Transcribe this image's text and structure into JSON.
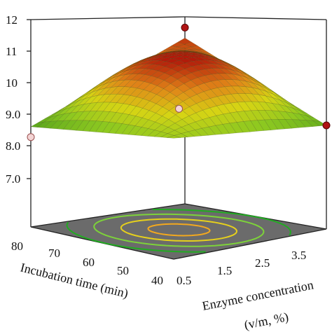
{
  "chart_data": {
    "type": "surface3d",
    "title": "",
    "zlabel": "",
    "zlim": [
      6.0,
      12.0
    ],
    "z_ticks": [
      "12",
      "11",
      "10",
      "9.0",
      "8.0",
      "7.0"
    ],
    "x_axis": {
      "label": "Incubation time (min)",
      "range": [
        40,
        80
      ],
      "ticks": [
        "80",
        "70",
        "60",
        "50",
        "40"
      ]
    },
    "y_axis": {
      "label_line1": "Enzyme concentration",
      "label_line2": "(v/m, %)",
      "range": [
        0.5,
        4.5
      ],
      "ticks": [
        "0.5",
        "1.5",
        "2.5",
        "3.5"
      ]
    },
    "surface_corners": [
      {
        "incubation_time": 80,
        "enzyme": 0.5,
        "value": 8.9
      },
      {
        "incubation_time": 40,
        "enzyme": 0.5,
        "value": 9.5
      },
      {
        "incubation_time": 80,
        "enzyme": 4.5,
        "value": 10.8
      },
      {
        "incubation_time": 40,
        "enzyme": 4.5,
        "value": 9.0
      }
    ],
    "surface_peak": {
      "incubation_time": 60,
      "enzyme": 2.5,
      "value": 10.9
    },
    "design_points": [
      {
        "incubation_time": 80,
        "enzyme": 0.5,
        "value": 8.6,
        "position": "below surface"
      },
      {
        "incubation_time": 60,
        "enzyme": 2.5,
        "value": 9.5,
        "position": "below surface"
      },
      {
        "incubation_time": 80,
        "enzyme": 4.5,
        "value": 11.1,
        "position": "above surface"
      },
      {
        "incubation_time": 40,
        "enzyme": 4.5,
        "value": 9.0,
        "position": "above surface"
      }
    ],
    "colormap": [
      "#4a9a1c",
      "#8cc820",
      "#d6d414",
      "#e08418",
      "#b21a0a"
    ],
    "contour_colors": [
      "#22aa22",
      "#7dd23a",
      "#e6d01c",
      "#f2a81e"
    ],
    "floor_color": "#6b6b6b",
    "grid": false,
    "legend": "none"
  }
}
